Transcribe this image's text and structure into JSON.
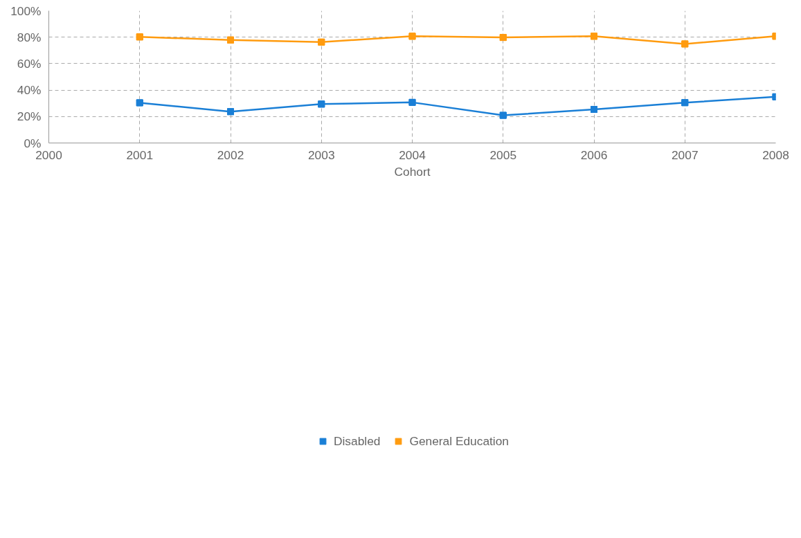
{
  "chart_data": {
    "type": "line",
    "xlabel": "Cohort",
    "x": [
      2001,
      2002,
      2003,
      2004,
      2005,
      2006,
      2007,
      2008
    ],
    "series": [
      {
        "name": "Disabled",
        "color": "#1a7fd6",
        "values": [
          30.4,
          23.7,
          29.4,
          30.7,
          20.9,
          25.4,
          30.5,
          34.9
        ]
      },
      {
        "name": "General Education",
        "color": "#ff9b0f",
        "values": [
          80.2,
          77.9,
          76.3,
          80.7,
          79.8,
          80.7,
          74.9,
          80.7
        ]
      }
    ],
    "xlim": [
      2000,
      2008
    ],
    "xticks": [
      2000,
      2001,
      2002,
      2003,
      2004,
      2005,
      2006,
      2007,
      2008
    ],
    "ylim": [
      0,
      100
    ],
    "yticks": [
      {
        "value": 0,
        "label": "0%"
      },
      {
        "value": 20,
        "label": "20%"
      },
      {
        "value": 40,
        "label": "40%"
      },
      {
        "value": 60,
        "label": "60%"
      },
      {
        "value": 80,
        "label": "80%"
      },
      {
        "value": 100,
        "label": "100%"
      }
    ],
    "grid": true,
    "legend": "bottom",
    "marker": "square",
    "line_style": "solid"
  }
}
